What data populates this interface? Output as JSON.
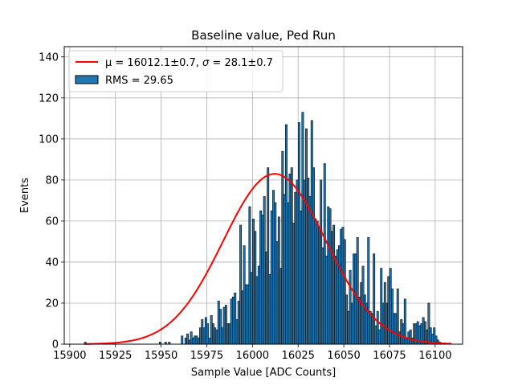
{
  "chart_data": {
    "type": "bar",
    "title": "Baseline value, Ped Run",
    "xlabel": "Sample Value [ADC Counts]",
    "ylabel": "Events",
    "xlim": [
      15897,
      16115
    ],
    "ylim": [
      0,
      145
    ],
    "xticks": [
      15900,
      15925,
      15950,
      15975,
      16000,
      16025,
      16050,
      16075,
      16100
    ],
    "yticks": [
      0,
      20,
      40,
      60,
      80,
      100,
      120,
      140
    ],
    "grid": true,
    "legend_position": "upper-left",
    "colors": {
      "bars": "#1f77b4",
      "bar_edge": "#000000",
      "fit": "#ff0000"
    },
    "series": [
      {
        "name": "RMS = 29.65",
        "kind": "histogram",
        "bin_start": 15908,
        "bin_width": 1,
        "counts": [
          1,
          0,
          0,
          0,
          0,
          0,
          0,
          0,
          0,
          0,
          0,
          0,
          0,
          0,
          0,
          0,
          0,
          0,
          0,
          0,
          0,
          0,
          0,
          0,
          0,
          0,
          0,
          0,
          0,
          0,
          0,
          0,
          0,
          0,
          0,
          0,
          0,
          0,
          0,
          0,
          0,
          1,
          0,
          0,
          1,
          0,
          1,
          0,
          0,
          0,
          0,
          0,
          0,
          4,
          0,
          3,
          5,
          2,
          6,
          3,
          4,
          4,
          3,
          8,
          12,
          8,
          13,
          10,
          3,
          14,
          10,
          8,
          7,
          21,
          17,
          8,
          18,
          19,
          10,
          10,
          22,
          23,
          25,
          12,
          21,
          58,
          26,
          48,
          29,
          29,
          67,
          35,
          61,
          55,
          33,
          38,
          65,
          63,
          72,
          45,
          86,
          34,
          65,
          75,
          69,
          50,
          62,
          37,
          94,
          73,
          107,
          69,
          83,
          86,
          59,
          74,
          80,
          108,
          65,
          113,
          80,
          105,
          81,
          72,
          109,
          86,
          61,
          60,
          57,
          80,
          47,
          88,
          43,
          67,
          66,
          55,
          58,
          43,
          46,
          48,
          56,
          57,
          51,
          24,
          16,
          36,
          20,
          44,
          44,
          52,
          23,
          30,
          38,
          24,
          20,
          52,
          16,
          15,
          44,
          9,
          16,
          7,
          37,
          20,
          30,
          20,
          33,
          37,
          27,
          15,
          15,
          27,
          6,
          12,
          10,
          22,
          3,
          6,
          7,
          3,
          10,
          10,
          11,
          9,
          10,
          13,
          11,
          7,
          20,
          8,
          5,
          8,
          4,
          2,
          1,
          0,
          0,
          0,
          0,
          0,
          0,
          0,
          0,
          0,
          0,
          0
        ]
      },
      {
        "name": "μ = 16012.1±0.7, σ = 28.1±0.7",
        "kind": "gaussian-fit",
        "mu": 16012.1,
        "sigma": 28.1,
        "amplitude": 83,
        "x_range": [
          15908,
          16109
        ]
      }
    ],
    "legend": [
      {
        "label_pre": "μ = 16012.1±0.7, ",
        "label_mid": "σ",
        "label_post": " = 28.1±0.7",
        "type": "line"
      },
      {
        "label": "RMS = 29.65",
        "type": "patch"
      }
    ]
  }
}
